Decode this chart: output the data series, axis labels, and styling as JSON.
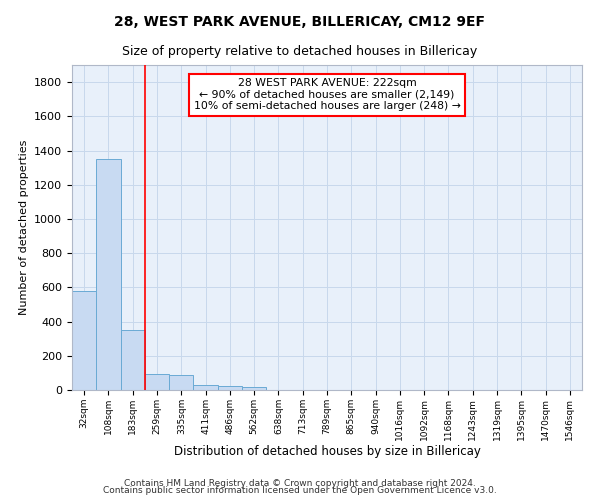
{
  "title": "28, WEST PARK AVENUE, BILLERICAY, CM12 9EF",
  "subtitle": "Size of property relative to detached houses in Billericay",
  "xlabel": "Distribution of detached houses by size in Billericay",
  "ylabel": "Number of detached properties",
  "bin_labels": [
    "32sqm",
    "108sqm",
    "183sqm",
    "259sqm",
    "335sqm",
    "411sqm",
    "486sqm",
    "562sqm",
    "638sqm",
    "713sqm",
    "789sqm",
    "865sqm",
    "940sqm",
    "1016sqm",
    "1092sqm",
    "1168sqm",
    "1243sqm",
    "1319sqm",
    "1395sqm",
    "1470sqm",
    "1546sqm"
  ],
  "bin_values": [
    580,
    1350,
    350,
    95,
    90,
    30,
    25,
    18,
    0,
    0,
    0,
    0,
    0,
    0,
    0,
    0,
    0,
    0,
    0,
    0,
    0
  ],
  "bar_color": "#c8daf2",
  "bar_edge_color": "#6aaad4",
  "grid_color": "#c8d8ec",
  "bg_color": "#e8f0fa",
  "red_line_x": 2.5,
  "annotation_line1": "28 WEST PARK AVENUE: 222sqm",
  "annotation_line2": "← 90% of detached houses are smaller (2,149)",
  "annotation_line3": "10% of semi-detached houses are larger (248) →",
  "footnote1": "Contains HM Land Registry data © Crown copyright and database right 2024.",
  "footnote2": "Contains public sector information licensed under the Open Government Licence v3.0.",
  "ylim": [
    0,
    1900
  ],
  "yticks": [
    0,
    200,
    400,
    600,
    800,
    1000,
    1200,
    1400,
    1600,
    1800
  ]
}
